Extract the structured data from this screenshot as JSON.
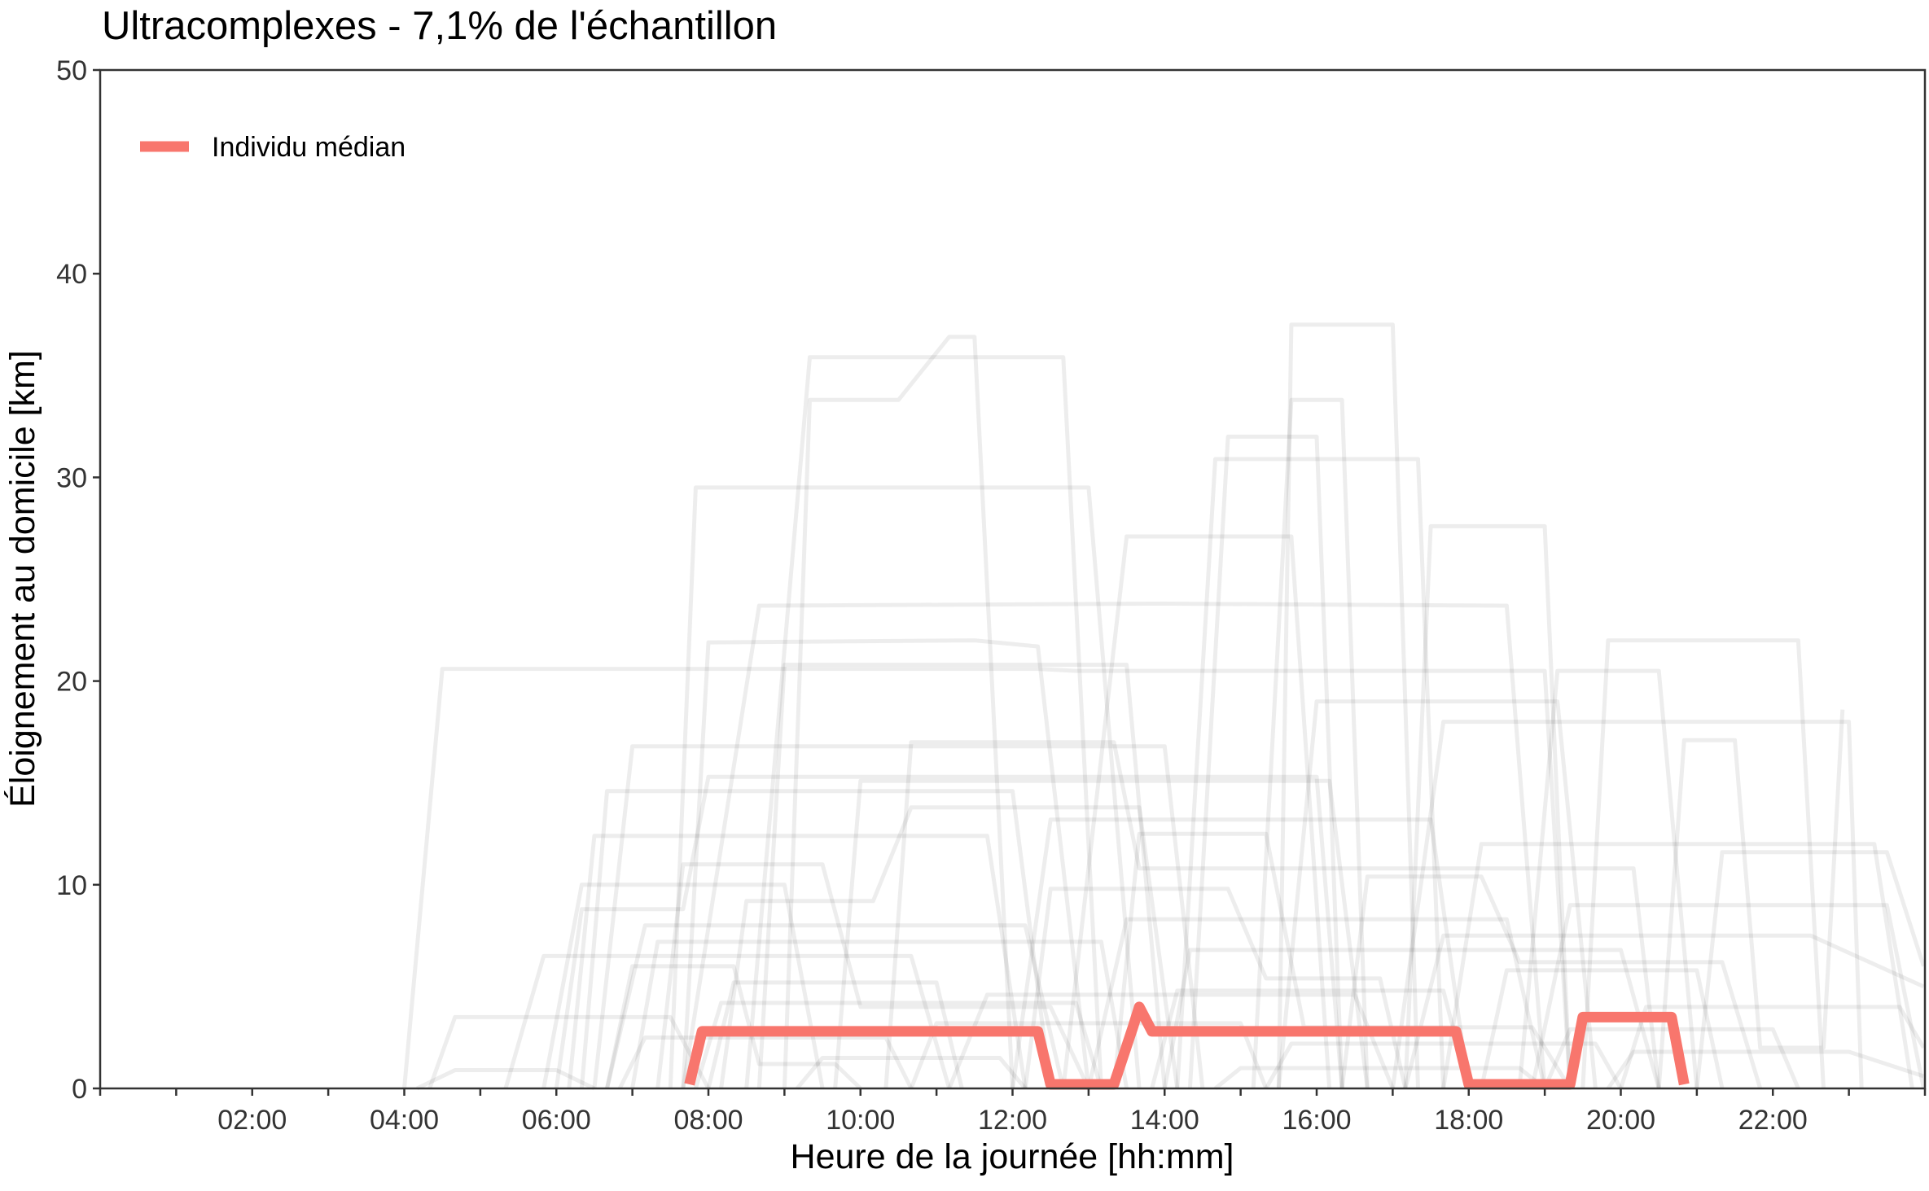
{
  "chart_data": {
    "type": "line",
    "title": "Ultracomplexes - 7,1% de l'échantillon",
    "xlabel": "Heure de la journée [hh:mm]",
    "ylabel": "Éloignement au domicile [km]",
    "xlim_hours": [
      0,
      24
    ],
    "ylim": [
      0,
      50
    ],
    "x_tick_labels": [
      "02:00",
      "04:00",
      "06:00",
      "08:00",
      "10:00",
      "12:00",
      "14:00",
      "16:00",
      "18:00",
      "20:00",
      "22:00"
    ],
    "y_tick_labels": [
      "0",
      "10",
      "20",
      "30",
      "40",
      "50"
    ],
    "grid": false,
    "legend": {
      "position": "top-left",
      "entries": [
        "Individu médian"
      ]
    },
    "colors": {
      "median": "#F8766D",
      "individuals": "#000000"
    },
    "series": [
      {
        "name": "Individu médian",
        "x": [
          "07:45",
          "07:55",
          "12:20",
          "12:30",
          "13:20",
          "13:35",
          "13:40",
          "13:50",
          "17:50",
          "18:00",
          "19:20",
          "19:30",
          "20:40",
          "20:50"
        ],
        "y": [
          0.2,
          2.8,
          2.8,
          0.2,
          0.2,
          3.0,
          4.0,
          2.8,
          2.8,
          0.2,
          0.2,
          3.5,
          3.5,
          0.2
        ]
      },
      {
        "x": [
          "04:00",
          "04:30",
          "12:20",
          "12:50",
          "19:00",
          "19:20"
        ],
        "y": [
          0,
          20.6,
          20.6,
          20.5,
          20.5,
          0
        ]
      },
      {
        "x": [
          "08:30",
          "09:20",
          "11:00",
          "11:20",
          "12:40",
          "13:10"
        ],
        "y": [
          0,
          35.9,
          35.9,
          35.9,
          35.9,
          0
        ]
      },
      {
        "x": [
          "09:00",
          "09:20",
          "10:30",
          "11:10",
          "11:30",
          "12:00"
        ],
        "y": [
          0,
          33.8,
          33.8,
          36.9,
          36.9,
          0
        ]
      },
      {
        "x": [
          "15:30",
          "15:40",
          "17:00",
          "17:20"
        ],
        "y": [
          0,
          37.5,
          37.5,
          0
        ]
      },
      {
        "x": [
          "15:10",
          "15:40",
          "16:20",
          "16:40"
        ],
        "y": [
          0,
          33.8,
          33.8,
          0
        ]
      },
      {
        "x": [
          "07:30",
          "07:50",
          "13:00",
          "13:40"
        ],
        "y": [
          0,
          29.5,
          29.5,
          0
        ]
      },
      {
        "x": [
          "14:20",
          "14:50",
          "16:00",
          "16:20"
        ],
        "y": [
          0,
          32.0,
          32.0,
          0
        ]
      },
      {
        "x": [
          "14:10",
          "14:40",
          "17:20",
          "17:40"
        ],
        "y": [
          0,
          30.9,
          30.9,
          0
        ]
      },
      {
        "x": [
          "12:40",
          "13:30",
          "15:40",
          "16:10"
        ],
        "y": [
          0,
          27.1,
          27.1,
          0
        ]
      },
      {
        "x": [
          "17:10",
          "17:30",
          "19:00",
          "19:20"
        ],
        "y": [
          0,
          27.6,
          27.6,
          0
        ]
      },
      {
        "x": [
          "07:40",
          "08:40",
          "14:00",
          "18:30",
          "19:00"
        ],
        "y": [
          0,
          23.7,
          23.8,
          23.7,
          0
        ]
      },
      {
        "x": [
          "07:40",
          "08:00",
          "11:30",
          "12:20",
          "13:00"
        ],
        "y": [
          0,
          21.9,
          22.0,
          21.7,
          0
        ]
      },
      {
        "x": [
          "19:30",
          "19:50",
          "22:20",
          "22:40"
        ],
        "y": [
          0,
          22.0,
          22.0,
          0
        ]
      },
      {
        "x": [
          "08:40",
          "09:00",
          "13:30",
          "14:00"
        ],
        "y": [
          0,
          20.8,
          20.8,
          0
        ]
      },
      {
        "x": [
          "18:40",
          "19:10",
          "20:30",
          "21:00"
        ],
        "y": [
          0,
          20.5,
          20.5,
          0
        ]
      },
      {
        "x": [
          "15:30",
          "16:00",
          "19:10",
          "19:40"
        ],
        "y": [
          0,
          19.0,
          19.0,
          0
        ]
      },
      {
        "x": [
          "06:30",
          "07:00",
          "14:00",
          "14:30"
        ],
        "y": [
          0,
          16.8,
          16.8,
          0
        ]
      },
      {
        "x": [
          "17:00",
          "17:40",
          "23:00",
          "23:10"
        ],
        "y": [
          0,
          18.0,
          18.0,
          0
        ]
      },
      {
        "x": [
          "20:30",
          "20:50",
          "21:30",
          "21:50",
          "22:40",
          "22:55"
        ],
        "y": [
          0,
          17.1,
          17.1,
          2.0,
          2.0,
          18.6
        ]
      },
      {
        "x": [
          "06:20",
          "06:40",
          "12:00",
          "12:30"
        ],
        "y": [
          0,
          14.6,
          14.6,
          0
        ]
      },
      {
        "x": [
          "09:40",
          "10:00",
          "16:10",
          "16:40"
        ],
        "y": [
          0,
          15.1,
          15.1,
          0
        ]
      },
      {
        "x": [
          "05:50",
          "06:20",
          "09:00",
          "09:30"
        ],
        "y": [
          0,
          10.0,
          10.0,
          0
        ]
      },
      {
        "x": [
          "17:40",
          "18:10",
          "23:20",
          "23:50"
        ],
        "y": [
          0,
          12.0,
          12.0,
          0
        ]
      },
      {
        "x": [
          "06:10",
          "06:30",
          "11:40",
          "12:10"
        ],
        "y": [
          0,
          12.4,
          12.4,
          0
        ]
      },
      {
        "x": [
          "12:00",
          "12:30",
          "17:30",
          "18:00"
        ],
        "y": [
          0,
          13.2,
          13.2,
          0
        ]
      },
      {
        "x": [
          "18:50",
          "19:20",
          "23:30",
          "23:59"
        ],
        "y": [
          0,
          9.0,
          9.0,
          0
        ]
      },
      {
        "x": [
          "04:20",
          "04:40",
          "07:30",
          "08:00"
        ],
        "y": [
          0,
          3.5,
          3.5,
          0
        ]
      },
      {
        "x": [
          "04:10",
          "04:40",
          "06:00",
          "06:30"
        ],
        "y": [
          0,
          0.9,
          0.9,
          0
        ]
      },
      {
        "x": [
          "05:20",
          "05:50",
          "10:40",
          "11:10"
        ],
        "y": [
          0,
          6.5,
          6.5,
          0
        ]
      },
      {
        "x": [
          "06:40",
          "07:10",
          "12:10",
          "12:40"
        ],
        "y": [
          0,
          8.0,
          8.0,
          0
        ]
      },
      {
        "x": [
          "07:00",
          "07:20",
          "13:10",
          "13:30"
        ],
        "y": [
          0,
          7.2,
          7.2,
          0
        ]
      },
      {
        "x": [
          "13:00",
          "13:30",
          "18:30",
          "19:00"
        ],
        "y": [
          0,
          8.3,
          8.3,
          0
        ]
      },
      {
        "x": [
          "14:00",
          "14:20",
          "20:00",
          "20:30"
        ],
        "y": [
          0,
          6.8,
          6.8,
          0
        ]
      },
      {
        "x": [
          "17:10",
          "17:40",
          "22:30",
          "23:59"
        ],
        "y": [
          0,
          7.5,
          7.5,
          5.0
        ]
      },
      {
        "x": [
          "08:00",
          "08:20",
          "11:00",
          "11:20"
        ],
        "y": [
          0,
          5.2,
          5.2,
          0
        ]
      },
      {
        "x": [
          "11:10",
          "11:40",
          "16:30",
          "17:00"
        ],
        "y": [
          0,
          4.6,
          4.6,
          0
        ]
      },
      {
        "x": [
          "18:10",
          "18:30",
          "21:00",
          "21:20"
        ],
        "y": [
          0,
          5.8,
          5.8,
          0
        ]
      },
      {
        "x": [
          "20:00",
          "20:20",
          "23:40",
          "23:59"
        ],
        "y": [
          0,
          4.0,
          4.0,
          2.0
        ]
      },
      {
        "x": [
          "06:50",
          "07:10",
          "10:20",
          "10:40"
        ],
        "y": [
          0,
          2.5,
          2.5,
          0
        ]
      },
      {
        "x": [
          "10:40",
          "11:00",
          "15:00",
          "15:20"
        ],
        "y": [
          0,
          3.2,
          3.2,
          0
        ]
      },
      {
        "x": [
          "15:20",
          "15:40",
          "19:40",
          "20:00"
        ],
        "y": [
          0,
          2.2,
          2.2,
          0
        ]
      },
      {
        "x": [
          "19:00",
          "19:20",
          "22:00",
          "22:20"
        ],
        "y": [
          0,
          2.9,
          2.9,
          0
        ]
      },
      {
        "x": [
          "07:20",
          "07:40",
          "09:30",
          "10:00",
          "12:30",
          "13:00"
        ],
        "y": [
          0,
          11.0,
          11.0,
          4.0,
          4.0,
          0
        ]
      },
      {
        "x": [
          "13:20",
          "13:40",
          "15:20",
          "15:50",
          "18:50",
          "19:20"
        ],
        "y": [
          0,
          12.5,
          12.5,
          3.0,
          3.0,
          0
        ]
      },
      {
        "x": [
          "08:10",
          "08:30",
          "10:10",
          "10:40",
          "13:40",
          "14:10"
        ],
        "y": [
          0,
          9.2,
          9.2,
          13.8,
          13.8,
          0
        ]
      },
      {
        "x": [
          "16:20",
          "16:40",
          "18:10",
          "18:40",
          "21:20",
          "21:50"
        ],
        "y": [
          0,
          10.4,
          10.4,
          6.2,
          6.2,
          0
        ]
      },
      {
        "x": [
          "21:00",
          "21:20",
          "23:30",
          "23:59"
        ],
        "y": [
          0,
          11.6,
          11.6,
          6.0
        ]
      },
      {
        "x": [
          "06:40",
          "07:00",
          "08:20",
          "08:40",
          "09:40",
          "10:00"
        ],
        "y": [
          0,
          6.0,
          6.0,
          1.2,
          1.2,
          0
        ]
      },
      {
        "x": [
          "12:10",
          "12:30",
          "14:50",
          "15:20",
          "16:50",
          "17:10"
        ],
        "y": [
          0,
          9.8,
          9.8,
          5.4,
          5.4,
          0
        ]
      },
      {
        "x": [
          "09:10",
          "09:30",
          "11:50",
          "12:10"
        ],
        "y": [
          0,
          1.5,
          1.5,
          0
        ]
      },
      {
        "x": [
          "14:40",
          "15:00",
          "18:40",
          "19:00"
        ],
        "y": [
          0,
          1.0,
          1.0,
          0
        ]
      },
      {
        "x": [
          "19:50",
          "20:10",
          "23:00",
          "23:59"
        ],
        "y": [
          0,
          1.8,
          1.8,
          0.6
        ]
      },
      {
        "x": [
          "07:50",
          "08:10",
          "12:50",
          "13:10"
        ],
        "y": [
          0,
          4.2,
          4.2,
          0
        ]
      },
      {
        "x": [
          "13:50",
          "14:10",
          "17:40",
          "18:00"
        ],
        "y": [
          0,
          4.8,
          4.8,
          0
        ]
      },
      {
        "x": [
          "06:00",
          "06:20",
          "07:40",
          "08:00",
          "16:00",
          "16:20"
        ],
        "y": [
          0,
          8.8,
          8.8,
          15.3,
          15.3,
          0
        ]
      },
      {
        "x": [
          "10:20",
          "10:40",
          "13:20",
          "13:40",
          "20:10",
          "20:30"
        ],
        "y": [
          0,
          17.0,
          17.0,
          10.8,
          10.8,
          0
        ]
      }
    ]
  }
}
